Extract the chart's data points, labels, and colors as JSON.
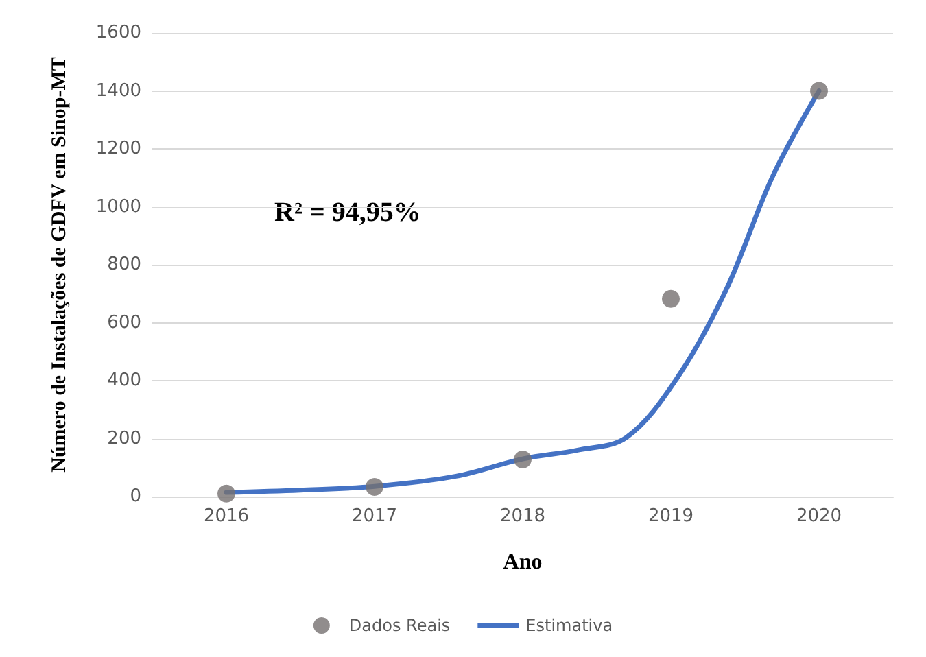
{
  "chart_data": {
    "type": "scatter",
    "xlabel": "Ano",
    "ylabel": "Número de Instalações de GDFV em Sinop-MT",
    "annotations": [
      "R² = 94,95%"
    ],
    "xlim": [
      2015.5,
      2020.5
    ],
    "xticks": [
      2016,
      2017,
      2018,
      2019,
      2020
    ],
    "ylim": [
      0,
      1600
    ],
    "yticks": [
      0,
      200,
      400,
      600,
      800,
      1000,
      1200,
      1400,
      1600
    ],
    "grid": "y",
    "legend": "bottom",
    "series": [
      {
        "name": "Dados Reais",
        "marker": "circle",
        "color": "#767171",
        "x": [
          2016,
          2017,
          2018,
          2019,
          2020
        ],
        "values": [
          10,
          33,
          128,
          682,
          1400
        ]
      },
      {
        "name": "Estimativa",
        "type": "line",
        "marker": "none",
        "color": "#4472c4",
        "line_style": "solid",
        "x": [
          2016,
          2016.5,
          2017,
          2017.55,
          2018,
          2018.37,
          2018.7,
          2019.04,
          2019.37,
          2019.69,
          2020
        ],
        "values": [
          14,
          22,
          35,
          70,
          130,
          160,
          204,
          407,
          710,
          1108,
          1400
        ]
      }
    ]
  }
}
